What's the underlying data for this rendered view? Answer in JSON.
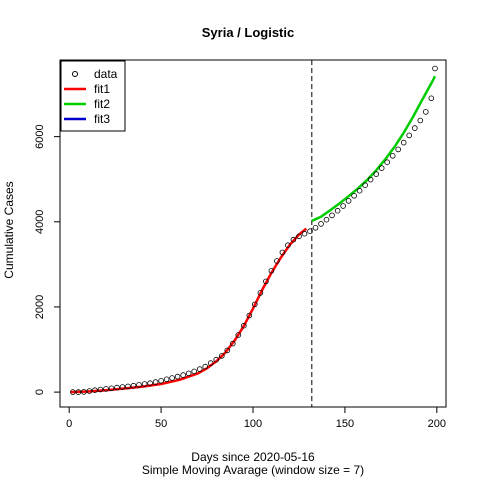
{
  "chart_data": {
    "type": "scatter",
    "title": "Syria / Logistic",
    "xlabel": "Days since 2020-05-16",
    "subtitle": "Simple Moving Avarage (window size = 7)",
    "ylabel": "Cumulative Cases",
    "xlim": [
      -5,
      205
    ],
    "ylim": [
      -350,
      7800
    ],
    "x_ticks": [
      0,
      50,
      100,
      150,
      200
    ],
    "y_ticks": [
      0,
      2000,
      4000,
      6000
    ],
    "vline_x": 132,
    "legend": {
      "position": "top-left",
      "entries": [
        {
          "label": "data",
          "kind": "point",
          "color": "#000000"
        },
        {
          "label": "fit1",
          "kind": "line",
          "color": "#ff0000"
        },
        {
          "label": "fit2",
          "kind": "line",
          "color": "#00cd00"
        },
        {
          "label": "fit3",
          "kind": "line",
          "color": "#0000cd"
        }
      ]
    },
    "series": [
      {
        "name": "data",
        "kind": "points",
        "color": "#000000",
        "x": [
          2,
          5,
          8,
          11,
          14,
          17,
          20,
          23,
          26,
          29,
          32,
          35,
          38,
          41,
          44,
          47,
          50,
          53,
          56,
          59,
          62,
          65,
          68,
          71,
          74,
          77,
          80,
          83,
          86,
          89,
          92,
          95,
          98,
          101,
          104,
          107,
          110,
          113,
          116,
          119,
          122,
          125,
          128,
          131,
          134,
          137,
          140,
          143,
          146,
          149,
          152,
          155,
          158,
          161,
          164,
          167,
          170,
          173,
          176,
          179,
          182,
          185,
          188,
          191,
          194,
          197,
          199
        ],
        "y": [
          0,
          0,
          5,
          25,
          45,
          60,
          75,
          90,
          105,
          120,
          135,
          150,
          170,
          190,
          210,
          235,
          265,
          300,
          330,
          365,
          400,
          440,
          485,
          540,
          600,
          680,
          760,
          850,
          980,
          1140,
          1340,
          1560,
          1800,
          2060,
          2330,
          2600,
          2850,
          3080,
          3280,
          3450,
          3580,
          3660,
          3720,
          3780,
          3860,
          3950,
          4050,
          4150,
          4260,
          4370,
          4490,
          4610,
          4730,
          4860,
          4990,
          5120,
          5260,
          5400,
          5550,
          5700,
          5860,
          6030,
          6200,
          6380,
          6580,
          6900,
          7600
        ]
      },
      {
        "name": "fit1",
        "kind": "line",
        "color": "#ff0000",
        "x": [
          1,
          10,
          20,
          30,
          40,
          50,
          60,
          70,
          75,
          80,
          85,
          90,
          95,
          100,
          105,
          110,
          115,
          120,
          125,
          129
        ],
        "y": [
          0,
          15,
          45,
          85,
          130,
          190,
          290,
          440,
          560,
          720,
          930,
          1210,
          1550,
          1960,
          2400,
          2800,
          3150,
          3460,
          3700,
          3840
        ]
      },
      {
        "name": "fit2",
        "kind": "line",
        "color": "#00cd00",
        "x": [
          132,
          137,
          142,
          147,
          152,
          157,
          162,
          167,
          172,
          177,
          182,
          187,
          192,
          197,
          199
        ],
        "y": [
          4020,
          4120,
          4270,
          4430,
          4600,
          4780,
          4980,
          5210,
          5470,
          5760,
          6090,
          6460,
          6860,
          7250,
          7420
        ]
      },
      {
        "name": "fit3",
        "kind": "line",
        "color": "#0000cd",
        "x": [],
        "y": []
      }
    ]
  }
}
